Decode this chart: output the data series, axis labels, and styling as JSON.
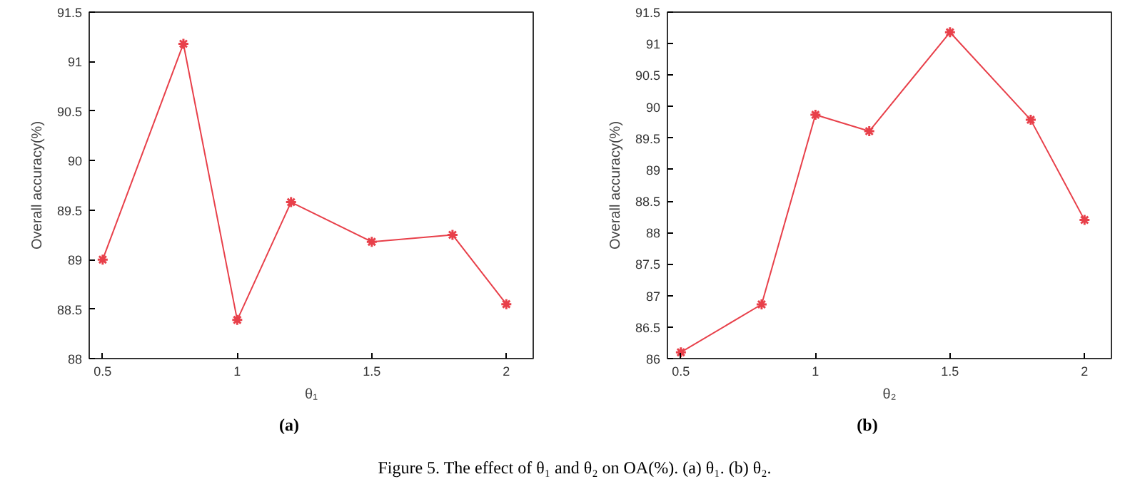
{
  "chart_data": [
    {
      "type": "line",
      "xlabel": "θ₁",
      "ylabel": "Overall accuracy(%)",
      "x": [
        0.5,
        0.8,
        1,
        1.2,
        1.5,
        1.8,
        2
      ],
      "series": [
        {
          "color": "#e8404a",
          "values": [
            89.0,
            91.18,
            88.39,
            89.58,
            89.18,
            89.25,
            88.55
          ]
        }
      ],
      "xlim": [
        0.45,
        2.1
      ],
      "xticks": [
        0.5,
        1,
        1.5,
        2
      ],
      "ylim": [
        88,
        91.5
      ],
      "yticks": [
        88,
        88.5,
        89,
        89.5,
        90,
        90.5,
        91,
        91.5
      ],
      "marker": "cross",
      "line_style": "solid",
      "annotations": [
        "(a)",
        "Figure 5. The effect of θ₁ and θ₂ on OA(%). (a) θ₁. (b) θ₂."
      ]
    },
    {
      "type": "line",
      "xlabel": "θ₂",
      "ylabel": "Overall accuracy(%)",
      "x": [
        0.5,
        0.8,
        1,
        1.2,
        1.5,
        1.8,
        2
      ],
      "series": [
        {
          "color": "#e8404a",
          "values": [
            86.1,
            86.86,
            89.87,
            89.61,
            91.18,
            89.79,
            88.2
          ]
        }
      ],
      "xlim": [
        0.45,
        2.1
      ],
      "xticks": [
        0.5,
        1,
        1.5,
        2
      ],
      "ylim": [
        86,
        91.5
      ],
      "yticks": [
        86,
        86.5,
        87,
        87.5,
        88,
        88.5,
        89,
        89.5,
        90,
        90.5,
        91,
        91.5
      ],
      "marker": "cross",
      "line_style": "solid",
      "annotations": [
        "(b)"
      ]
    }
  ]
}
